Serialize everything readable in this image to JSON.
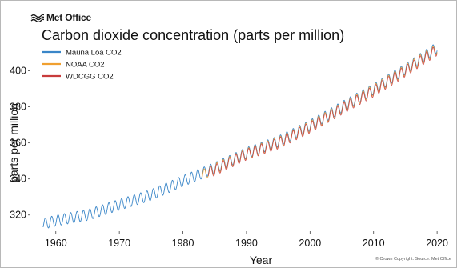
{
  "header": {
    "logo_text": "Met Office",
    "title": "Carbon dioxide concentration (parts per million)"
  },
  "footer": {
    "copyright": "© Crown Copyright. Source: Met Office"
  },
  "chart_data": {
    "type": "line",
    "title": "Carbon dioxide concentration (parts per million)",
    "xlabel": "Year",
    "ylabel": "parts per million",
    "xlim": [
      1956,
      2022
    ],
    "ylim": [
      311,
      418
    ],
    "xticks": [
      1960,
      1970,
      1980,
      1990,
      2000,
      2010,
      2020
    ],
    "yticks": [
      320,
      340,
      360,
      380,
      400
    ],
    "grid": false,
    "legend_position": "top-left",
    "seasonal_amplitude_ppm": 3,
    "series": [
      {
        "name": "Mauna Loa CO2",
        "color": "#3a86c8",
        "x": [
          1958,
          1960,
          1965,
          1970,
          1975,
          1980,
          1985,
          1990,
          1995,
          2000,
          2005,
          2010,
          2015,
          2020
        ],
        "y": [
          315,
          316.9,
          320,
          325.7,
          331.1,
          338.8,
          346.1,
          354.4,
          360.8,
          369.7,
          379.9,
          389.9,
          401,
          413
        ]
      },
      {
        "name": "NOAA CO2",
        "color": "#f0a030",
        "x": [
          1983,
          1985,
          1990,
          1995,
          2000,
          2005,
          2010,
          2015,
          2020
        ],
        "y": [
          342,
          345.5,
          353.9,
          360.2,
          369.1,
          379.3,
          389.3,
          400.4,
          412.2
        ]
      },
      {
        "name": "WDCGG CO2",
        "color": "#c83c3c",
        "x": [
          1984,
          1985,
          1990,
          1995,
          2000,
          2005,
          2010,
          2015,
          2020
        ],
        "y": [
          343.5,
          344.8,
          353.5,
          359.7,
          368.5,
          378.7,
          388.6,
          399.8,
          411.5
        ]
      }
    ]
  }
}
